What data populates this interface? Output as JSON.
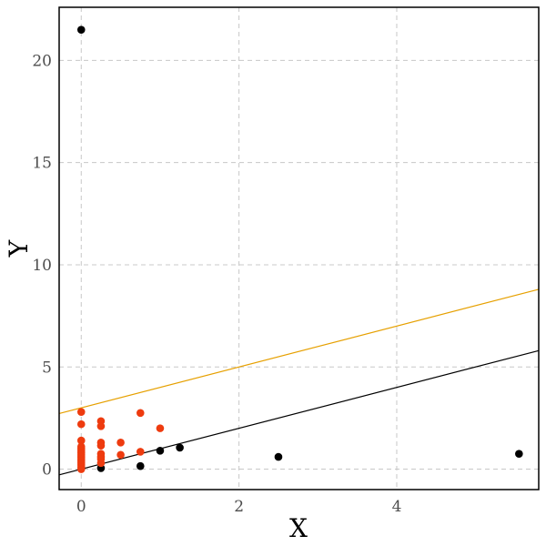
{
  "chart_data": {
    "type": "scatter",
    "title": "",
    "xlabel": "X",
    "ylabel": "Y",
    "xlim": [
      -0.28,
      5.8
    ],
    "ylim": [
      -1.0,
      22.6
    ],
    "xticks": [
      0,
      2,
      4
    ],
    "yticks": [
      0,
      5,
      10,
      15,
      20
    ],
    "grid": true,
    "legend": "none",
    "series": [
      {
        "color": "#000000",
        "points": [
          [
            0,
            21.5
          ],
          [
            0.25,
            0.05
          ],
          [
            0.75,
            0.15
          ],
          [
            1.0,
            0.9
          ],
          [
            1.25,
            1.05
          ],
          [
            2.5,
            0.6
          ],
          [
            5.55,
            0.75
          ]
        ]
      },
      {
        "color": "#ee3b0f",
        "points": [
          [
            0,
            2.8
          ],
          [
            0,
            2.2
          ],
          [
            0,
            1.4
          ],
          [
            0,
            1.1
          ],
          [
            0,
            1.0
          ],
          [
            0,
            0.9
          ],
          [
            0,
            0.8
          ],
          [
            0,
            0.7
          ],
          [
            0,
            0.6
          ],
          [
            0,
            0.5
          ],
          [
            0,
            0.4
          ],
          [
            0,
            0.3
          ],
          [
            0,
            0.2
          ],
          [
            0,
            0.1
          ],
          [
            0,
            0.0
          ],
          [
            0.25,
            2.35
          ],
          [
            0.25,
            2.1
          ],
          [
            0.25,
            1.3
          ],
          [
            0.25,
            1.15
          ],
          [
            0.25,
            0.75
          ],
          [
            0.25,
            0.6
          ],
          [
            0.25,
            0.5
          ],
          [
            0.25,
            0.3
          ],
          [
            0.5,
            1.3
          ],
          [
            0.5,
            0.7
          ],
          [
            0.75,
            2.75
          ],
          [
            0.75,
            0.85
          ],
          [
            1.0,
            2.0
          ]
        ]
      }
    ],
    "lines": [
      {
        "color": "#e6a000",
        "intercept": 3.0,
        "slope": 1.0
      },
      {
        "color": "#000000",
        "intercept": 0.0,
        "slope": 1.0
      }
    ]
  }
}
